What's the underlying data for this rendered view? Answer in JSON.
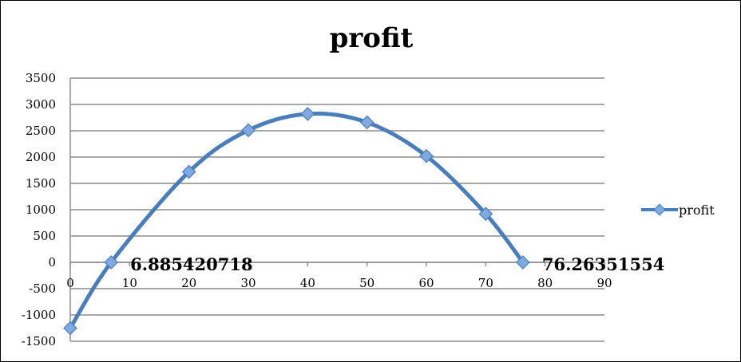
{
  "chart_data": {
    "type": "scatter",
    "title": "profit",
    "xlabel": "",
    "ylabel": "",
    "xlim": [
      0,
      90
    ],
    "ylim": [
      -1500,
      3500
    ],
    "x_ticks": [
      0,
      10,
      20,
      30,
      40,
      50,
      60,
      70,
      80,
      90
    ],
    "y_ticks": [
      -1500,
      -1000,
      -500,
      0,
      500,
      1000,
      1500,
      2000,
      2500,
      3000,
      3500
    ],
    "grid": "horizontal",
    "legend_position": "right",
    "series": [
      {
        "name": "profit",
        "color": "#4a7ebb",
        "marker": "diamond",
        "smooth": true,
        "x": [
          0,
          6.885420718,
          20,
          30,
          40,
          50,
          60,
          70,
          76.26351554
        ],
        "y": [
          -1250,
          0,
          1720,
          2510,
          2820,
          2660,
          2020,
          920,
          0
        ]
      }
    ],
    "annotations": [
      {
        "text": "6.885420718",
        "x": 6.885420718,
        "y": 0
      },
      {
        "text": "76.26351554",
        "x": 76.26351554,
        "y": 0
      }
    ]
  }
}
